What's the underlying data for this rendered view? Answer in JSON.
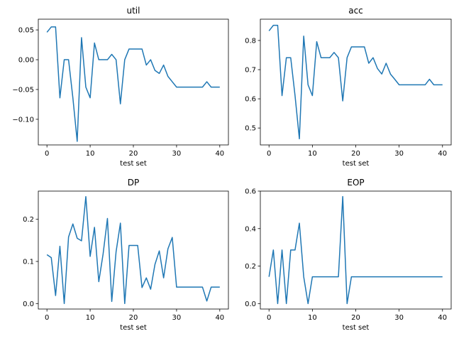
{
  "figure": {
    "background": "#ffffff",
    "line_color": "#1f77b4"
  },
  "chart_data": [
    {
      "type": "line",
      "title": "util",
      "xlabel": "test set",
      "ylabel": "",
      "xlim": [
        -2,
        42
      ],
      "ylim": [
        -0.143,
        0.068
      ],
      "xticks": [
        0,
        10,
        20,
        30,
        40
      ],
      "yticks": [
        -0.1,
        -0.05,
        0.0,
        0.05
      ],
      "ytick_labels": [
        "−0.10",
        "−0.05",
        "0.00",
        "0.05"
      ],
      "x": [
        0,
        1,
        2,
        3,
        4,
        5,
        6,
        7,
        8,
        9,
        10,
        11,
        12,
        13,
        14,
        15,
        16,
        17,
        18,
        19,
        20,
        21,
        22,
        23,
        24,
        25,
        26,
        27,
        28,
        29,
        30,
        31,
        32,
        33,
        34,
        35,
        36,
        37,
        38,
        39,
        40
      ],
      "values": [
        0.046,
        0.055,
        0.055,
        -0.064,
        0.0,
        0.0,
        -0.064,
        -0.137,
        0.037,
        -0.046,
        -0.064,
        0.028,
        0.0,
        0.0,
        0.0,
        0.009,
        0.0,
        -0.074,
        0.0,
        0.018,
        0.018,
        0.018,
        0.018,
        -0.009,
        0.0,
        -0.018,
        -0.023,
        -0.009,
        -0.028,
        -0.037,
        -0.046,
        -0.046,
        -0.046,
        -0.046,
        -0.046,
        -0.046,
        -0.046,
        -0.037,
        -0.046,
        -0.046,
        -0.046
      ]
    },
    {
      "type": "line",
      "title": "acc",
      "xlabel": "test set",
      "ylabel": "",
      "xlim": [
        -2,
        42
      ],
      "ylim": [
        0.442,
        0.873
      ],
      "xticks": [
        0,
        10,
        20,
        30,
        40
      ],
      "yticks": [
        0.5,
        0.6,
        0.7,
        0.8
      ],
      "ytick_labels": [
        "0.5",
        "0.6",
        "0.7",
        "0.8"
      ],
      "x": [
        0,
        1,
        2,
        3,
        4,
        5,
        6,
        7,
        8,
        9,
        10,
        11,
        12,
        13,
        14,
        15,
        16,
        17,
        18,
        19,
        20,
        21,
        22,
        23,
        24,
        25,
        26,
        27,
        28,
        29,
        30,
        31,
        32,
        33,
        34,
        35,
        36,
        37,
        38,
        39,
        40
      ],
      "values": [
        0.833,
        0.852,
        0.852,
        0.611,
        0.741,
        0.741,
        0.611,
        0.463,
        0.815,
        0.648,
        0.611,
        0.796,
        0.741,
        0.741,
        0.741,
        0.759,
        0.741,
        0.593,
        0.741,
        0.778,
        0.778,
        0.778,
        0.778,
        0.722,
        0.741,
        0.704,
        0.685,
        0.722,
        0.685,
        0.667,
        0.648,
        0.648,
        0.648,
        0.648,
        0.648,
        0.648,
        0.648,
        0.667,
        0.648,
        0.648,
        0.648
      ]
    },
    {
      "type": "line",
      "title": "DP",
      "xlabel": "test set",
      "ylabel": "",
      "xlim": [
        -2,
        42
      ],
      "ylim": [
        -0.013,
        0.267
      ],
      "xticks": [
        0,
        10,
        20,
        30,
        40
      ],
      "yticks": [
        0.0,
        0.1,
        0.2
      ],
      "ytick_labels": [
        "0.0",
        "0.1",
        "0.2"
      ],
      "x": [
        0,
        1,
        2,
        3,
        4,
        5,
        6,
        7,
        8,
        9,
        10,
        11,
        12,
        13,
        14,
        15,
        16,
        17,
        18,
        19,
        20,
        21,
        22,
        23,
        24,
        25,
        26,
        27,
        28,
        29,
        30,
        31,
        32,
        33,
        34,
        35,
        36,
        37,
        38,
        39,
        40
      ],
      "values": [
        0.116,
        0.109,
        0.019,
        0.136,
        0.0,
        0.158,
        0.189,
        0.155,
        0.149,
        0.254,
        0.112,
        0.181,
        0.052,
        0.118,
        0.202,
        0.005,
        0.123,
        0.191,
        0.0,
        0.138,
        0.138,
        0.138,
        0.038,
        0.061,
        0.034,
        0.093,
        0.125,
        0.061,
        0.13,
        0.157,
        0.039,
        0.039,
        0.039,
        0.039,
        0.039,
        0.039,
        0.039,
        0.006,
        0.039,
        0.039,
        0.039
      ]
    },
    {
      "type": "line",
      "title": "EOP",
      "xlabel": "test set",
      "ylabel": "",
      "xlim": [
        -2,
        42
      ],
      "ylim": [
        -0.029,
        0.6
      ],
      "xticks": [
        0,
        10,
        20,
        30,
        40
      ],
      "yticks": [
        0.0,
        0.2,
        0.4,
        0.6
      ],
      "ytick_labels": [
        "0.0",
        "0.2",
        "0.4",
        "0.6"
      ],
      "x": [
        0,
        1,
        2,
        3,
        4,
        5,
        6,
        7,
        8,
        9,
        10,
        11,
        12,
        13,
        14,
        15,
        16,
        17,
        18,
        19,
        20,
        21,
        22,
        23,
        24,
        25,
        26,
        27,
        28,
        29,
        30,
        31,
        32,
        33,
        34,
        35,
        36,
        37,
        38,
        39,
        40
      ],
      "values": [
        0.143,
        0.286,
        0.0,
        0.286,
        0.0,
        0.286,
        0.286,
        0.429,
        0.143,
        0.0,
        0.143,
        0.143,
        0.143,
        0.143,
        0.143,
        0.143,
        0.143,
        0.571,
        0.0,
        0.143,
        0.143,
        0.143,
        0.143,
        0.143,
        0.143,
        0.143,
        0.143,
        0.143,
        0.143,
        0.143,
        0.143,
        0.143,
        0.143,
        0.143,
        0.143,
        0.143,
        0.143,
        0.143,
        0.143,
        0.143,
        0.143
      ]
    }
  ]
}
